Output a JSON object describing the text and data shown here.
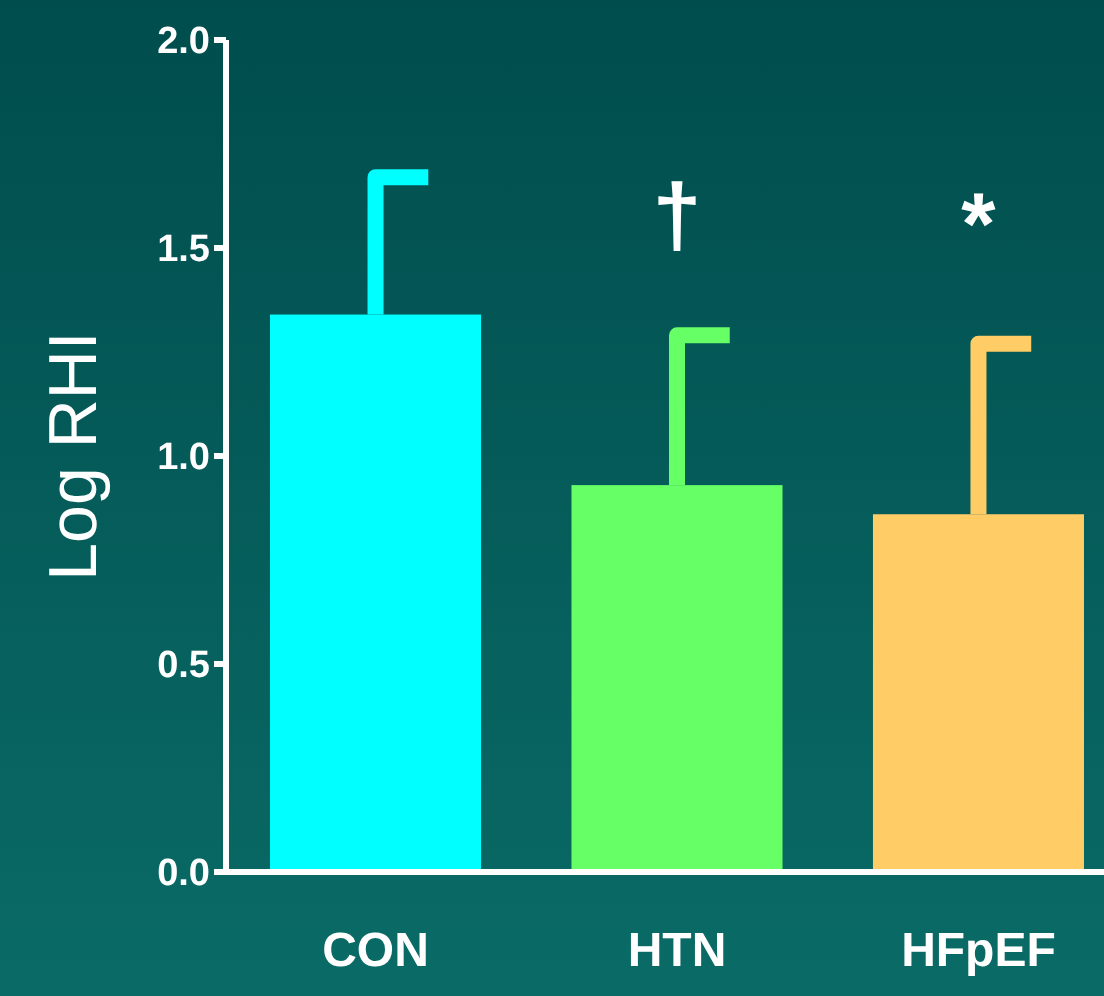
{
  "chart_data": {
    "type": "bar",
    "ylabel": "Log RHI",
    "categories": [
      "CON",
      "HTN",
      "HFpEF"
    ],
    "values": [
      1.34,
      0.93,
      0.86
    ],
    "colors": [
      "#00ffff",
      "#66ff66",
      "#ffcc66"
    ],
    "errors": [
      [
        1.34,
        1.67
      ],
      [
        0.93,
        1.29
      ],
      [
        0.86,
        1.27
      ]
    ],
    "ylim": [
      0,
      2
    ],
    "yticks": [
      {
        "value": 0,
        "label": "0.0"
      },
      {
        "value": 0.5,
        "label": "0.5"
      },
      {
        "value": 1,
        "label": "1.0"
      },
      {
        "value": 1.5,
        "label": "1.5"
      },
      {
        "value": 2,
        "label": "2.0"
      }
    ],
    "annotations": [
      {
        "text": "†",
        "x": "HTN",
        "y": 1.29
      },
      {
        "text": "*",
        "x": "HFpEF",
        "y": 1.27
      }
    ]
  }
}
